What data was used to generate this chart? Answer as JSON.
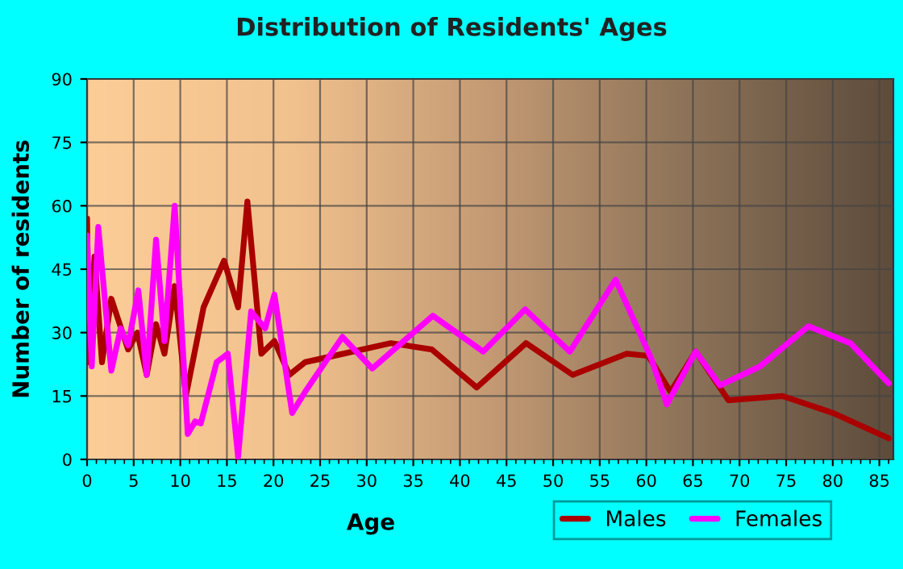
{
  "chart_data": {
    "type": "line",
    "title": "Distribution of Residents' Ages",
    "xlabel": "Age",
    "ylabel": "Number of residents",
    "xlim": [
      0,
      86.5
    ],
    "xticks": [
      0,
      5,
      10,
      15,
      20,
      25,
      30,
      35,
      40,
      45,
      50,
      55,
      60,
      65,
      70,
      75,
      80,
      85
    ],
    "ylim": [
      0,
      90
    ],
    "yticks": [
      0,
      15,
      30,
      45,
      60,
      75,
      90
    ],
    "grid": true,
    "legend": "bottom right",
    "line_style": "solid",
    "marker": "none",
    "series": [
      {
        "name": "Males",
        "color": "#aa0000",
        "x": [
          0,
          0.2,
          0.8,
          1.6,
          2.6,
          4.4,
          5.4,
          6.4,
          7.4,
          8.3,
          9.4,
          10.6,
          12.5,
          14.7,
          16.2,
          17.2,
          18.7,
          20.1,
          21.7,
          23.4,
          27.5,
          32.6,
          37,
          41.8,
          47.1,
          52.1,
          57.9,
          60.2,
          62.6,
          65.3,
          68.8,
          74.6,
          80,
          86
        ],
        "values": [
          57,
          23,
          48,
          23,
          38,
          26,
          30,
          20,
          32,
          25,
          41,
          15,
          36,
          47,
          36,
          61,
          25,
          28,
          20,
          23,
          25,
          27.5,
          26,
          17,
          27.5,
          20,
          25,
          24.5,
          16,
          25.5,
          14,
          15,
          11,
          5
        ]
      },
      {
        "name": "Females",
        "color": "#ff00ff",
        "x": [
          0,
          0.5,
          1.2,
          2.6,
          3.6,
          4.4,
          5.5,
          6.4,
          7.4,
          8.3,
          9.4,
          10.8,
          11.6,
          12.2,
          13.9,
          15.1,
          16.2,
          17.6,
          19.1,
          20.1,
          22,
          23.4,
          27.4,
          30.6,
          37.1,
          42.5,
          47,
          51.8,
          56.7,
          60.5,
          62.2,
          65.3,
          67.9,
          72.2,
          77.4,
          81.9,
          86
        ],
        "values": [
          53,
          22,
          55,
          21,
          31,
          27,
          40,
          20,
          52,
          28,
          60,
          6,
          9,
          8.5,
          23,
          25,
          0.6,
          35,
          31,
          39,
          11,
          16,
          29,
          21.5,
          34,
          25.5,
          35.5,
          25.5,
          42.5,
          24,
          13,
          25.5,
          17.5,
          22,
          31.5,
          27.5,
          18
        ]
      }
    ]
  }
}
